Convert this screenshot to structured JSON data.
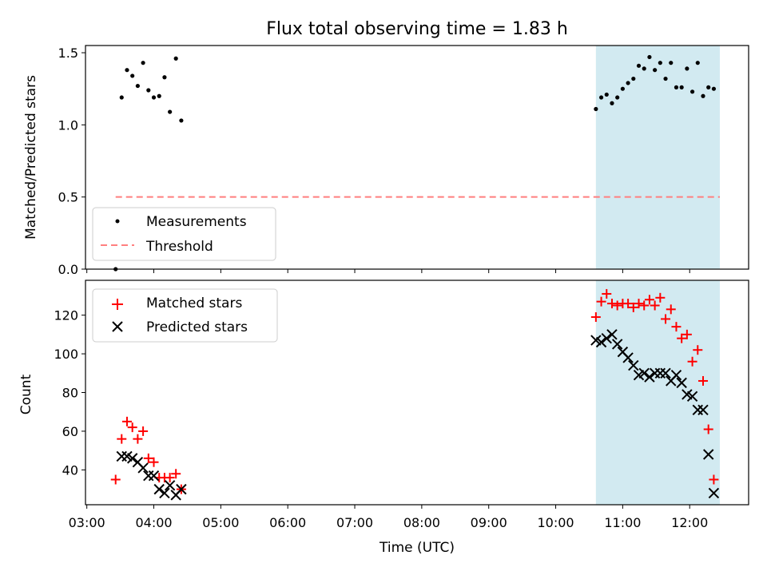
{
  "chart_data": {
    "title": "Flux total observing time = 1.83 h",
    "xlabel": "Time (UTC)",
    "x_ticks": [
      "03:00",
      "04:00",
      "05:00",
      "06:00",
      "07:00",
      "08:00",
      "09:00",
      "10:00",
      "11:00",
      "12:00"
    ],
    "x_tick_values": [
      3,
      4,
      5,
      6,
      7,
      8,
      9,
      10,
      11,
      12
    ],
    "xlim": [
      2.98,
      12.88
    ],
    "shaded_span": {
      "start": 10.6,
      "end": 12.45,
      "color": "#add8e6"
    },
    "panels": [
      {
        "type": "scatter",
        "ylabel": "Matched/Predicted stars",
        "ylim": [
          0,
          1.55
        ],
        "y_ticks": [
          0.0,
          0.5,
          1.0,
          1.5
        ],
        "y_tick_labels": [
          "0.0",
          "0.5",
          "1.0",
          "1.5"
        ],
        "legend": {
          "position": "lower-left",
          "entries": [
            "Measurements",
            "Threshold"
          ]
        },
        "series": [
          {
            "name": "Measurements",
            "marker": "dot",
            "color": "#000000",
            "points": [
              [
                3.43,
                0.0
              ],
              [
                3.52,
                1.19
              ],
              [
                3.6,
                1.38
              ],
              [
                3.68,
                1.34
              ],
              [
                3.76,
                1.27
              ],
              [
                3.84,
                1.43
              ],
              [
                3.92,
                1.24
              ],
              [
                4.0,
                1.19
              ],
              [
                4.08,
                1.2
              ],
              [
                4.16,
                1.33
              ],
              [
                4.24,
                1.09
              ],
              [
                4.33,
                1.46
              ],
              [
                4.41,
                1.03
              ],
              [
                10.6,
                1.11
              ],
              [
                10.68,
                1.19
              ],
              [
                10.76,
                1.21
              ],
              [
                10.84,
                1.15
              ],
              [
                10.92,
                1.19
              ],
              [
                11.0,
                1.25
              ],
              [
                11.08,
                1.29
              ],
              [
                11.16,
                1.32
              ],
              [
                11.24,
                1.41
              ],
              [
                11.32,
                1.39
              ],
              [
                11.4,
                1.47
              ],
              [
                11.48,
                1.38
              ],
              [
                11.56,
                1.43
              ],
              [
                11.64,
                1.32
              ],
              [
                11.72,
                1.43
              ],
              [
                11.8,
                1.26
              ],
              [
                11.88,
                1.26
              ],
              [
                11.96,
                1.39
              ],
              [
                12.04,
                1.23
              ],
              [
                12.12,
                1.43
              ],
              [
                12.2,
                1.2
              ],
              [
                12.28,
                1.26
              ],
              [
                12.36,
                1.25
              ]
            ]
          },
          {
            "name": "Threshold",
            "marker": "dashed-line",
            "color": "#ff7f7f",
            "points": [
              [
                3.43,
                0.5
              ],
              [
                12.45,
                0.5
              ]
            ]
          }
        ]
      },
      {
        "type": "scatter",
        "ylabel": "Count",
        "ylim": [
          22,
          138
        ],
        "y_ticks": [
          40,
          60,
          80,
          100,
          120
        ],
        "y_tick_labels": [
          "40",
          "60",
          "80",
          "100",
          "120"
        ],
        "legend": {
          "position": "upper-left",
          "entries": [
            "Matched stars",
            "Predicted stars"
          ]
        },
        "series": [
          {
            "name": "Matched stars",
            "marker": "plus",
            "color": "#ff0000",
            "points": [
              [
                3.43,
                35
              ],
              [
                3.52,
                56
              ],
              [
                3.6,
                65
              ],
              [
                3.68,
                62
              ],
              [
                3.76,
                56
              ],
              [
                3.84,
                60
              ],
              [
                3.92,
                46
              ],
              [
                4.0,
                44
              ],
              [
                4.08,
                36
              ],
              [
                4.16,
                36
              ],
              [
                4.24,
                36
              ],
              [
                4.33,
                38
              ],
              [
                4.41,
                30
              ],
              [
                10.6,
                119
              ],
              [
                10.68,
                127
              ],
              [
                10.76,
                131
              ],
              [
                10.84,
                126
              ],
              [
                10.92,
                125
              ],
              [
                11.0,
                126
              ],
              [
                11.08,
                126
              ],
              [
                11.16,
                124
              ],
              [
                11.24,
                126
              ],
              [
                11.32,
                125
              ],
              [
                11.4,
                128
              ],
              [
                11.48,
                125
              ],
              [
                11.56,
                129
              ],
              [
                11.64,
                118
              ],
              [
                11.72,
                123
              ],
              [
                11.8,
                114
              ],
              [
                11.88,
                108
              ],
              [
                11.96,
                110
              ],
              [
                12.04,
                96
              ],
              [
                12.12,
                102
              ],
              [
                12.2,
                86
              ],
              [
                12.28,
                61
              ],
              [
                12.36,
                35
              ]
            ]
          },
          {
            "name": "Predicted stars",
            "marker": "x",
            "color": "#000000",
            "points": [
              [
                3.52,
                47
              ],
              [
                3.6,
                47
              ],
              [
                3.68,
                46
              ],
              [
                3.76,
                44
              ],
              [
                3.84,
                41
              ],
              [
                3.92,
                37
              ],
              [
                4.0,
                37
              ],
              [
                4.08,
                30
              ],
              [
                4.16,
                28
              ],
              [
                4.24,
                32
              ],
              [
                4.33,
                27
              ],
              [
                4.41,
                30
              ],
              [
                10.6,
                107
              ],
              [
                10.68,
                106
              ],
              [
                10.76,
                108
              ],
              [
                10.84,
                110
              ],
              [
                10.92,
                105
              ],
              [
                11.0,
                101
              ],
              [
                11.08,
                98
              ],
              [
                11.16,
                94
              ],
              [
                11.24,
                89
              ],
              [
                11.32,
                90
              ],
              [
                11.4,
                88
              ],
              [
                11.48,
                90
              ],
              [
                11.56,
                90
              ],
              [
                11.64,
                90
              ],
              [
                11.72,
                86
              ],
              [
                11.8,
                89
              ],
              [
                11.88,
                85
              ],
              [
                11.96,
                79
              ],
              [
                12.04,
                78
              ],
              [
                12.12,
                71
              ],
              [
                12.2,
                71
              ],
              [
                12.28,
                48
              ],
              [
                12.36,
                28
              ]
            ]
          }
        ]
      }
    ]
  }
}
